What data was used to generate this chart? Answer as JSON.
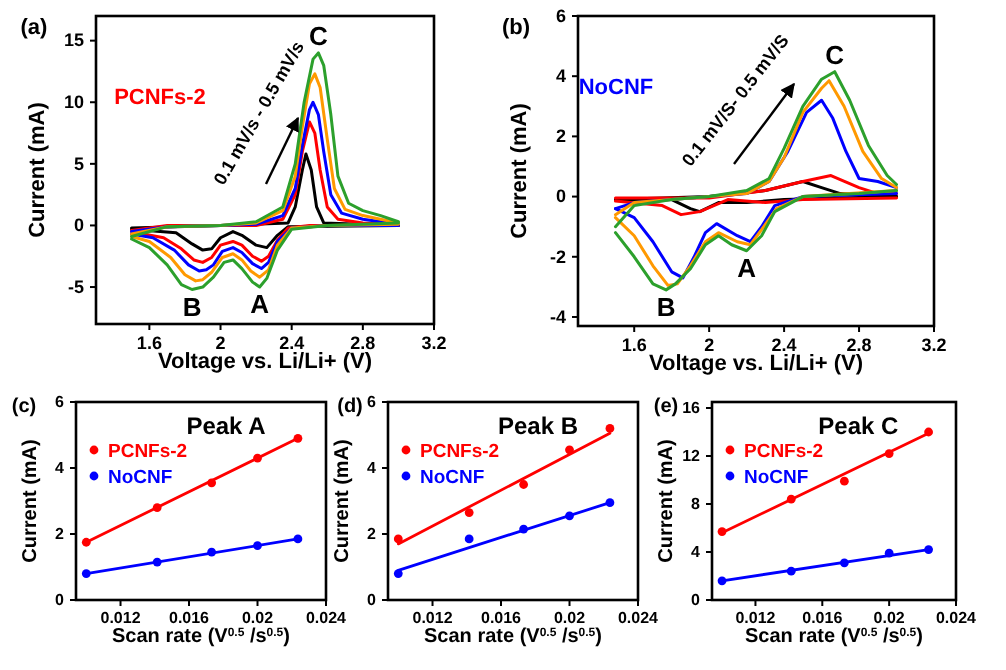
{
  "chart_data": [
    {
      "type": "line",
      "xlabel": "Voltage vs. Li/Li+ (V)",
      "ylabel": "Current (mA)",
      "xlim": [
        1.3,
        3.2
      ],
      "ylim": [
        -8,
        17
      ],
      "xticks": [
        1.6,
        2.0,
        2.4,
        2.8,
        3.2
      ],
      "yticks": [
        -5,
        0,
        5,
        10,
        15
      ],
      "annotations": [
        "(a)",
        "PCNFs-2",
        "0.1 mV/s - 0.5 mV/s",
        {
          "text": "A",
          "x": 2.22,
          "y": -5
        },
        {
          "text": "B",
          "x": 1.84,
          "y": -5.2
        },
        {
          "text": "C",
          "x": 2.55,
          "y": 14
        }
      ],
      "series": [
        {
          "color": "#000000",
          "x": [
            1.5,
            2.0,
            2.38,
            2.42,
            2.46,
            2.48,
            2.51,
            2.54,
            2.58,
            3.0
          ],
          "values": [
            -0.2,
            0,
            0.2,
            1.5,
            4.5,
            5.8,
            4.5,
            1.5,
            0.2,
            0
          ]
        },
        {
          "color": "#000000",
          "x": [
            1.5,
            1.75,
            1.84,
            1.9,
            1.95,
            2.0,
            2.07,
            2.12,
            2.2,
            2.26,
            2.32,
            2.38,
            3.0
          ],
          "values": [
            -0.3,
            -0.6,
            -1.5,
            -2.0,
            -1.9,
            -1.0,
            -0.5,
            -0.8,
            -1.6,
            -1.8,
            -0.8,
            -0.1,
            0
          ]
        },
        {
          "color": "#ff0000",
          "x": [
            1.5,
            1.7,
            2.2,
            2.35,
            2.42,
            2.46,
            2.5,
            2.53,
            2.56,
            2.6,
            2.66,
            2.8,
            3.0
          ],
          "values": [
            -0.4,
            0,
            0,
            0.5,
            2.5,
            6,
            8.4,
            7.5,
            4.5,
            1.5,
            0.5,
            0.2,
            0.1
          ]
        },
        {
          "color": "#ff0000",
          "x": [
            1.5,
            1.68,
            1.78,
            1.85,
            1.9,
            1.95,
            2.0,
            2.07,
            2.12,
            2.18,
            2.23,
            2.27,
            2.32,
            2.38,
            2.5,
            3.0
          ],
          "values": [
            -0.5,
            -1.0,
            -1.9,
            -2.8,
            -3.0,
            -2.6,
            -1.6,
            -1.3,
            -1.6,
            -2.5,
            -2.9,
            -2.5,
            -1.2,
            -0.2,
            0,
            0
          ]
        },
        {
          "color": "#0000ff",
          "x": [
            1.5,
            1.7,
            2.0,
            2.2,
            2.35,
            2.42,
            2.46,
            2.5,
            2.52,
            2.55,
            2.58,
            2.62,
            2.68,
            2.8,
            3.0
          ],
          "values": [
            -0.5,
            -0.1,
            0,
            0.1,
            0.8,
            3,
            6.5,
            9.4,
            10,
            9,
            6,
            2.5,
            1,
            0.5,
            0.1
          ]
        },
        {
          "color": "#0000ff",
          "x": [
            1.5,
            1.62,
            1.74,
            1.82,
            1.88,
            1.92,
            1.96,
            2.01,
            2.07,
            2.12,
            2.18,
            2.23,
            2.27,
            2.32,
            2.4,
            2.6,
            3.0
          ],
          "values": [
            -0.7,
            -1.0,
            -2.0,
            -3.2,
            -3.7,
            -3.6,
            -3.2,
            -2.1,
            -1.8,
            -2.2,
            -3.1,
            -3.5,
            -3.0,
            -1.3,
            -0.2,
            0,
            0
          ]
        },
        {
          "color": "#ff9900",
          "x": [
            1.5,
            1.7,
            2.0,
            2.2,
            2.35,
            2.42,
            2.46,
            2.5,
            2.53,
            2.56,
            2.6,
            2.64,
            2.7,
            2.8,
            3.0
          ],
          "values": [
            -0.7,
            -0.1,
            0,
            0.2,
            1.2,
            4,
            8,
            11.5,
            12.3,
            11.2,
            7,
            3,
            1.3,
            0.8,
            0.2
          ]
        },
        {
          "color": "#ff9900",
          "x": [
            1.5,
            1.6,
            1.72,
            1.8,
            1.86,
            1.9,
            1.95,
            2.01,
            2.07,
            2.12,
            2.17,
            2.22,
            2.27,
            2.32,
            2.4,
            2.6,
            3.0
          ],
          "values": [
            -0.9,
            -1.3,
            -2.6,
            -4.0,
            -4.5,
            -4.4,
            -3.8,
            -2.6,
            -2.3,
            -2.8,
            -3.7,
            -4.2,
            -3.6,
            -1.6,
            -0.2,
            0,
            0.1
          ]
        },
        {
          "color": "#2ca02c",
          "x": [
            1.5,
            1.7,
            2.0,
            2.2,
            2.35,
            2.42,
            2.47,
            2.52,
            2.55,
            2.58,
            2.62,
            2.66,
            2.72,
            2.8,
            2.9,
            3.0
          ],
          "values": [
            -0.9,
            -0.1,
            0,
            0.3,
            1.5,
            5,
            10,
            13.5,
            14,
            13,
            9,
            4,
            1.8,
            1.2,
            0.8,
            0.3
          ]
        },
        {
          "color": "#2ca02c",
          "x": [
            1.5,
            1.6,
            1.7,
            1.78,
            1.84,
            1.9,
            1.96,
            2.02,
            2.07,
            2.12,
            2.18,
            2.22,
            2.26,
            2.32,
            2.4,
            2.6,
            3.0
          ],
          "values": [
            -1.1,
            -1.8,
            -3.2,
            -4.8,
            -5.2,
            -5.0,
            -4.2,
            -3.0,
            -2.8,
            -3.5,
            -4.6,
            -5,
            -4.3,
            -2,
            -0.3,
            0,
            0.2
          ]
        }
      ]
    },
    {
      "type": "line",
      "xlabel": "Voltage vs. Li/Li+ (V)",
      "ylabel": "Current (mA)",
      "xlim": [
        1.3,
        3.2
      ],
      "ylim": [
        -4.3,
        6
      ],
      "xticks": [
        1.6,
        2.0,
        2.4,
        2.8,
        3.2
      ],
      "yticks": [
        -4,
        -2,
        0,
        2,
        4,
        6
      ],
      "annotations": [
        "(b)",
        "NoCNF",
        "0.1 mV/S- 0.5 mV/S",
        {
          "text": "A",
          "x": 2.2,
          "y": -1.8
        },
        {
          "text": "B",
          "x": 1.77,
          "y": -3.1
        },
        {
          "text": "C",
          "x": 2.67,
          "y": 4.15
        }
      ],
      "series": [
        {
          "color": "#000000",
          "x": [
            1.5,
            2.0,
            2.3,
            2.5,
            2.6,
            2.7,
            3.0
          ],
          "values": [
            -0.1,
            0,
            0.2,
            0.5,
            0.3,
            0.1,
            0
          ]
        },
        {
          "color": "#000000",
          "x": [
            1.5,
            1.8,
            1.9,
            1.95,
            2.05,
            2.2,
            2.4,
            3.0
          ],
          "values": [
            -0.1,
            -0.1,
            -0.4,
            -0.5,
            -0.2,
            -0.2,
            -0.1,
            0
          ]
        },
        {
          "color": "#ff0000",
          "x": [
            1.5,
            2.0,
            2.3,
            2.5,
            2.65,
            2.8,
            2.9,
            3.0
          ],
          "values": [
            -0.05,
            -0.05,
            0.2,
            0.5,
            0.7,
            0.3,
            0.1,
            0.1
          ]
        },
        {
          "color": "#ff0000",
          "x": [
            1.5,
            1.75,
            1.85,
            1.95,
            2.1,
            2.3,
            2.5,
            3.0
          ],
          "values": [
            -0.15,
            -0.3,
            -0.6,
            -0.5,
            -0.1,
            -0.2,
            -0.1,
            -0.05
          ]
        },
        {
          "color": "#0000ff",
          "x": [
            1.5,
            1.6,
            2.0,
            2.2,
            2.32,
            2.42,
            2.52,
            2.6,
            2.66,
            2.73,
            2.8,
            2.9,
            3.0
          ],
          "values": [
            -0.4,
            -0.2,
            0,
            0.1,
            0.5,
            1.5,
            2.8,
            3.2,
            2.6,
            1.5,
            0.6,
            0.5,
            0.3
          ]
        },
        {
          "color": "#0000ff",
          "x": [
            1.5,
            1.6,
            1.7,
            1.8,
            1.86,
            1.92,
            1.98,
            2.04,
            2.15,
            2.22,
            2.28,
            2.35,
            2.5,
            3.0
          ],
          "values": [
            -0.4,
            -0.7,
            -1.5,
            -2.5,
            -2.7,
            -2.0,
            -1.2,
            -0.9,
            -1.3,
            -1.5,
            -1.0,
            -0.3,
            0,
            0.1
          ]
        },
        {
          "color": "#ff9900",
          "x": [
            1.5,
            1.6,
            2.0,
            2.2,
            2.32,
            2.4,
            2.5,
            2.6,
            2.64,
            2.72,
            2.82,
            2.92,
            3.0
          ],
          "values": [
            -0.6,
            -0.2,
            0,
            0.1,
            0.5,
            1.3,
            2.8,
            3.6,
            3.85,
            3.0,
            1.5,
            0.6,
            0.3
          ]
        },
        {
          "color": "#ff9900",
          "x": [
            1.5,
            1.6,
            1.7,
            1.78,
            1.83,
            1.9,
            1.98,
            2.05,
            2.15,
            2.22,
            2.28,
            2.36,
            2.5,
            3.0
          ],
          "values": [
            -0.7,
            -1.3,
            -2.3,
            -2.95,
            -2.9,
            -2.3,
            -1.5,
            -1.2,
            -1.5,
            -1.6,
            -1.1,
            -0.4,
            0,
            0.2
          ]
        },
        {
          "color": "#2ca02c",
          "x": [
            1.5,
            1.6,
            1.8,
            2.0,
            2.2,
            2.32,
            2.4,
            2.5,
            2.6,
            2.67,
            2.75,
            2.85,
            2.95,
            3.0
          ],
          "values": [
            -1.0,
            -0.3,
            -0.1,
            0,
            0.2,
            0.6,
            1.6,
            3,
            3.9,
            4.15,
            3.2,
            1.7,
            0.7,
            0.4
          ]
        },
        {
          "color": "#2ca02c",
          "x": [
            1.5,
            1.6,
            1.7,
            1.77,
            1.82,
            1.9,
            1.98,
            2.05,
            2.12,
            2.2,
            2.28,
            2.35,
            2.5,
            2.8,
            3.0
          ],
          "values": [
            -1.2,
            -2.0,
            -2.9,
            -3.1,
            -2.9,
            -2.4,
            -1.6,
            -1.3,
            -1.6,
            -1.8,
            -1.3,
            -0.5,
            0,
            0.1,
            0.2
          ]
        }
      ]
    },
    {
      "type": "scatter",
      "title": "Peak A",
      "xlabel": "Scan rate (V$^{0.5}$ /s$^{0.5}$)",
      "ylabel": "Current (mA)",
      "xlim": [
        0.0094,
        0.024
      ],
      "ylim": [
        0,
        6
      ],
      "xticks": [
        0.012,
        0.016,
        0.02,
        0.024
      ],
      "yticks": [
        0,
        2,
        4,
        6
      ],
      "legend": "top left",
      "annotations": [
        "(c)"
      ],
      "x": [
        0.01,
        0.01414,
        0.01732,
        0.02,
        0.02236
      ],
      "series": [
        {
          "name": "PCNFs-2",
          "color": "#ff0000",
          "marker": "circle",
          "values": [
            1.75,
            2.8,
            3.55,
            4.3,
            4.9
          ]
        },
        {
          "name": "NoCNF",
          "color": "#0000ff",
          "marker": "circle",
          "values": [
            0.8,
            1.15,
            1.45,
            1.65,
            1.85
          ]
        },
        {
          "type": "line",
          "color": "#ff0000",
          "x": [
            0.01,
            0.02236
          ],
          "values": [
            1.75,
            4.9
          ]
        },
        {
          "type": "line",
          "color": "#0000ff",
          "x": [
            0.01,
            0.02236
          ],
          "values": [
            0.8,
            1.85
          ]
        }
      ]
    },
    {
      "type": "scatter",
      "title": "Peak B",
      "xlabel": "Scan rate (V$^{0.5}$ /s$^{0.5}$)",
      "ylabel": "Current (mA)",
      "xlim": [
        0.0094,
        0.024
      ],
      "ylim": [
        0,
        6
      ],
      "xticks": [
        0.012,
        0.016,
        0.02,
        0.024
      ],
      "yticks": [
        0,
        2,
        4,
        6
      ],
      "legend": "top left",
      "annotations": [
        "(d)"
      ],
      "x": [
        0.01,
        0.01414,
        0.01732,
        0.02,
        0.02236
      ],
      "series": [
        {
          "name": "PCNFs-2",
          "color": "#ff0000",
          "marker": "circle",
          "values": [
            1.85,
            2.65,
            3.5,
            4.55,
            5.2
          ]
        },
        {
          "name": "NoCNF",
          "color": "#0000ff",
          "marker": "circle",
          "values": [
            0.8,
            1.85,
            2.15,
            2.55,
            2.95
          ]
        },
        {
          "type": "line",
          "color": "#ff0000",
          "x": [
            0.01,
            0.02236
          ],
          "values": [
            1.7,
            5.05
          ]
        },
        {
          "type": "line",
          "color": "#0000ff",
          "x": [
            0.01,
            0.02236
          ],
          "values": [
            0.9,
            2.95
          ]
        }
      ]
    },
    {
      "type": "scatter",
      "title": "Peak C",
      "xlabel": "Scan rate (V$^{0.5}$ /s$^{0.5}$)",
      "ylabel": "Current (mA)",
      "xlim": [
        0.0094,
        0.024
      ],
      "ylim": [
        0,
        16.5
      ],
      "xticks": [
        0.012,
        0.016,
        0.02,
        0.024
      ],
      "yticks": [
        0,
        4,
        8,
        12,
        16
      ],
      "legend": "top left",
      "annotations": [
        "(e)"
      ],
      "x": [
        0.01,
        0.01414,
        0.01732,
        0.02,
        0.02236
      ],
      "series": [
        {
          "name": "PCNFs-2",
          "color": "#ff0000",
          "marker": "circle",
          "values": [
            5.7,
            8.4,
            9.9,
            12.2,
            14
          ]
        },
        {
          "name": "NoCNF",
          "color": "#0000ff",
          "marker": "circle",
          "values": [
            1.6,
            2.4,
            3.1,
            3.9,
            4.2
          ]
        },
        {
          "type": "line",
          "color": "#ff0000",
          "x": [
            0.01,
            0.02236
          ],
          "values": [
            5.6,
            13.9
          ]
        },
        {
          "type": "line",
          "color": "#0000ff",
          "x": [
            0.01,
            0.02236
          ],
          "values": [
            1.6,
            4.2
          ]
        }
      ]
    }
  ]
}
